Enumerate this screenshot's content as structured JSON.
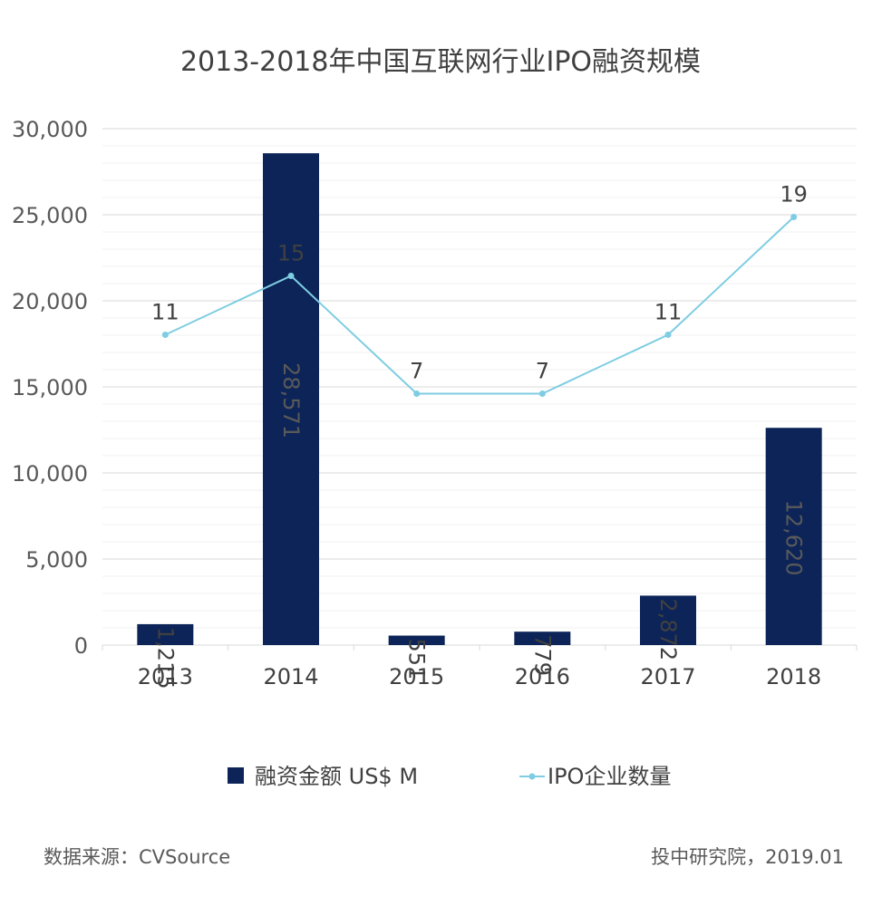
{
  "chart_data": {
    "type": "bar",
    "title": "2013-2018年中国互联网行业IPO融资规模",
    "categories": [
      "2013",
      "2014",
      "2015",
      "2016",
      "2017",
      "2018"
    ],
    "series": [
      {
        "name": "融资金额 US$ M",
        "type": "bar",
        "values": [
          1215,
          28571,
          551,
          779,
          2872,
          12620
        ],
        "labels": [
          "1,215",
          "28,571",
          "551",
          "779",
          "2,872",
          "12,620"
        ],
        "color": "#0c2458"
      },
      {
        "name": "IPO企业数量",
        "type": "line",
        "values": [
          11,
          15,
          7,
          7,
          11,
          19
        ],
        "labels": [
          "11",
          "15",
          "7",
          "7",
          "11",
          "19"
        ],
        "color": "#7ecde2"
      }
    ],
    "ylim": [
      0,
      30000
    ],
    "yticks": [
      0,
      5000,
      10000,
      15000,
      20000,
      25000,
      30000
    ],
    "ytick_labels": [
      "0",
      "5,000",
      "10,000",
      "15,000",
      "20,000",
      "25,000",
      "30,000"
    ],
    "legend_position": "bottom",
    "grid": true
  },
  "footer": {
    "source": "数据来源：CVSource",
    "credit": "投中研究院，2019.01"
  }
}
